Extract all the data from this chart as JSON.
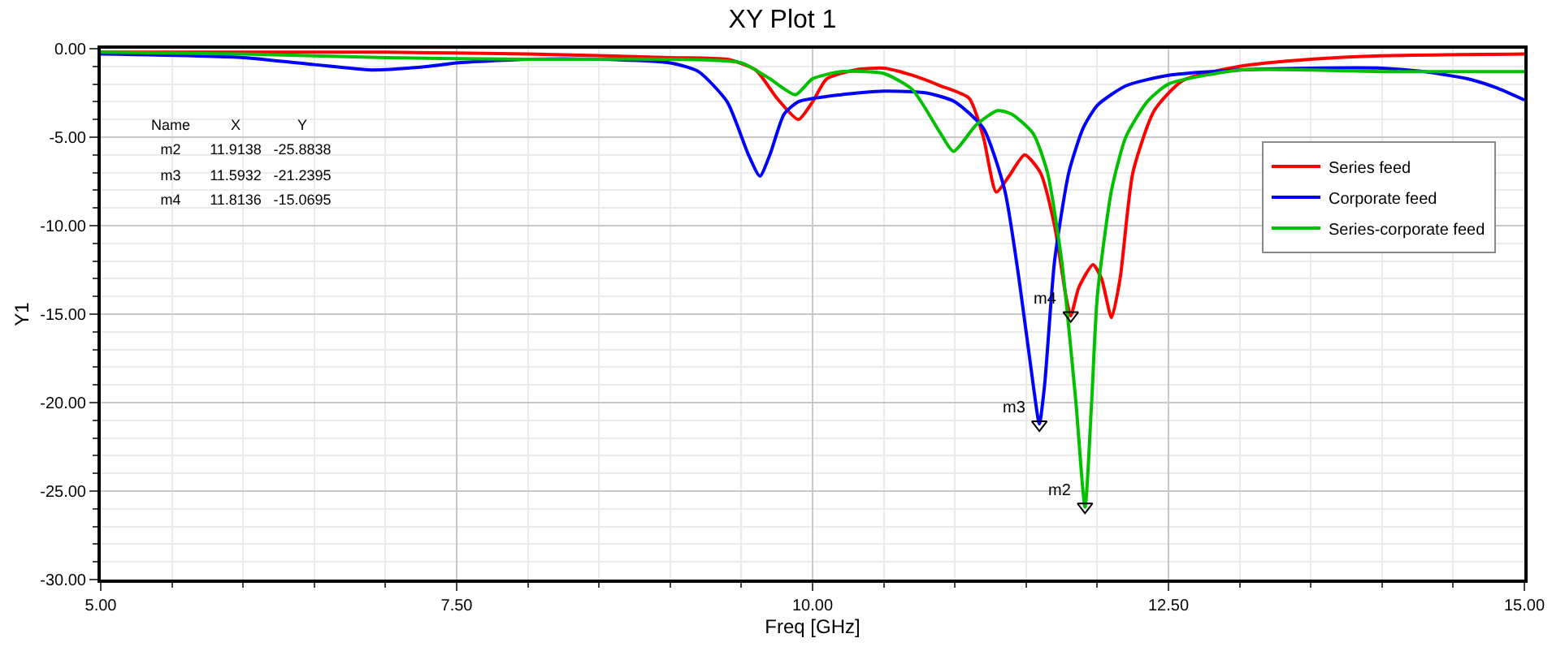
{
  "chart_data": {
    "type": "line",
    "title": "XY Plot 1",
    "xlabel": "Freq [GHz]",
    "ylabel": "Y1",
    "xlim": [
      5,
      15
    ],
    "xticks": [
      {
        "value": 5,
        "label": "5.00"
      },
      {
        "value": 7.5,
        "label": "7.50"
      },
      {
        "value": 10,
        "label": "10.00"
      },
      {
        "value": 12.5,
        "label": "12.50"
      },
      {
        "value": 15,
        "label": "15.00"
      }
    ],
    "ylim": [
      -30,
      0
    ],
    "yticks": [
      {
        "value": -30,
        "label": "-30.00"
      },
      {
        "value": -25,
        "label": "-25.00"
      },
      {
        "value": -20,
        "label": "-20.00"
      },
      {
        "value": -15,
        "label": "-15.00"
      },
      {
        "value": -10,
        "label": "-10.00"
      },
      {
        "value": -5,
        "label": "-5.00"
      },
      {
        "value": 0,
        "label": "0.00"
      }
    ],
    "grid": true,
    "legend": "right",
    "marker": "none",
    "line_style": "solid",
    "series": [
      {
        "name": "Series feed",
        "color": "#ff0000",
        "x": [
          5.0,
          7.0,
          8.0,
          9.0,
          9.4,
          9.6,
          9.75,
          9.9,
          10.0,
          10.1,
          10.3,
          10.5,
          10.7,
          10.9,
          11.1,
          11.2,
          11.29,
          11.38,
          11.49,
          11.6,
          11.7,
          11.78,
          11.8136,
          11.87,
          11.97,
          12.03,
          12.1,
          12.16,
          12.25,
          12.4,
          12.6,
          13.0,
          13.5,
          14.0,
          15.0
        ],
        "values": [
          -0.2,
          -0.2,
          -0.3,
          -0.5,
          -0.6,
          -1.2,
          -2.8,
          -4.0,
          -3.0,
          -1.7,
          -1.2,
          -1.1,
          -1.5,
          -2.1,
          -2.8,
          -5.0,
          -8.1,
          -7.2,
          -6.0,
          -7.0,
          -10.0,
          -14.0,
          -15.1,
          -13.5,
          -12.2,
          -13.0,
          -15.2,
          -13.0,
          -7.0,
          -3.5,
          -1.8,
          -1.0,
          -0.6,
          -0.4,
          -0.3
        ]
      },
      {
        "name": "Corporate feed",
        "color": "#0000ff",
        "x": [
          5.0,
          6.0,
          6.5,
          6.9,
          7.3,
          7.5,
          8.0,
          8.5,
          9.0,
          9.2,
          9.4,
          9.55,
          9.63,
          9.7,
          9.8,
          9.9,
          10.2,
          10.5,
          10.8,
          11.0,
          11.2,
          11.35,
          11.45,
          11.55,
          11.5932,
          11.63,
          11.7,
          11.8,
          11.9,
          12.0,
          12.2,
          12.5,
          13.0,
          13.5,
          14.0,
          14.3,
          14.6,
          14.8,
          15.0
        ],
        "values": [
          -0.3,
          -0.5,
          -0.9,
          -1.2,
          -1.0,
          -0.8,
          -0.6,
          -0.6,
          -0.8,
          -1.3,
          -3.0,
          -6.0,
          -7.2,
          -6.0,
          -3.7,
          -3.0,
          -2.6,
          -2.4,
          -2.5,
          -3.0,
          -4.5,
          -8.0,
          -13.0,
          -19.0,
          -21.2,
          -19.0,
          -12.0,
          -7.0,
          -4.5,
          -3.2,
          -2.1,
          -1.5,
          -1.2,
          -1.1,
          -1.1,
          -1.3,
          -1.7,
          -2.2,
          -2.9
        ]
      },
      {
        "name": "Series-corporate feed",
        "color": "#00c000",
        "x": [
          5.0,
          6.0,
          7.0,
          8.0,
          9.0,
          9.5,
          9.7,
          9.88,
          10.0,
          10.2,
          10.5,
          10.7,
          10.9,
          10.99,
          11.15,
          11.3,
          11.4,
          11.55,
          11.65,
          11.75,
          11.85,
          11.9138,
          11.96,
          12.0,
          12.1,
          12.2,
          12.35,
          12.5,
          13.0,
          13.5,
          14.0,
          15.0
        ],
        "values": [
          -0.2,
          -0.3,
          -0.5,
          -0.6,
          -0.6,
          -0.8,
          -1.7,
          -2.6,
          -1.7,
          -1.3,
          -1.4,
          -2.3,
          -4.8,
          -5.8,
          -4.3,
          -3.5,
          -3.7,
          -4.8,
          -7.0,
          -12.0,
          -20.0,
          -25.9,
          -20.0,
          -14.0,
          -8.0,
          -5.0,
          -3.0,
          -2.0,
          -1.2,
          -1.2,
          -1.3,
          -1.3
        ]
      }
    ],
    "annotations": [
      {
        "text": "m2",
        "x": 11.9138,
        "y": -25.8838
      },
      {
        "text": "m3",
        "x": 11.5932,
        "y": -21.2395
      },
      {
        "text": "m4",
        "x": 11.8136,
        "y": -15.0695
      },
      "Name",
      "X",
      "Y",
      "m2",
      "11.9138",
      "-25.8838",
      "m3",
      "11.5932",
      "-21.2395",
      "m4",
      "11.8136",
      "-15.0695"
    ]
  }
}
